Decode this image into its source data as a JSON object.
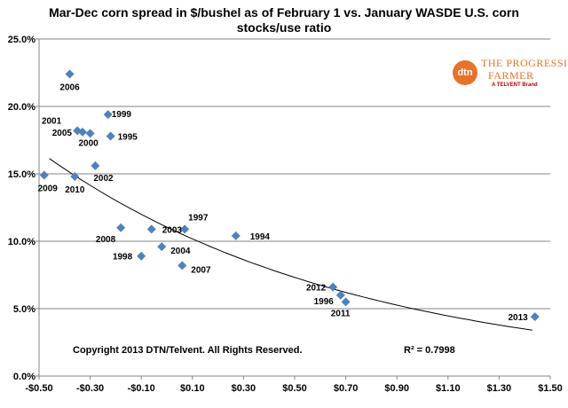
{
  "chart_data": {
    "type": "scatter",
    "title_line1": "Mar-Dec corn spread in $/bushel as of February 1 vs. January WASDE U.S. corn",
    "title_line2": "stocks/use ratio",
    "xlabel": "",
    "ylabel": "",
    "xlim": [
      -0.5,
      1.5
    ],
    "ylim": [
      0.0,
      25.0
    ],
    "x_ticks": [
      "-$0.50",
      "-$0.30",
      "-$0.10",
      "$0.10",
      "$0.30",
      "$0.50",
      "$0.70",
      "$0.90",
      "$1.10",
      "$1.30",
      "$1.50"
    ],
    "x_tick_values": [
      -0.5,
      -0.3,
      -0.1,
      0.1,
      0.3,
      0.5,
      0.7,
      0.9,
      1.1,
      1.3,
      1.5
    ],
    "y_ticks": [
      "0.0%",
      "5.0%",
      "10.0%",
      "15.0%",
      "20.0%",
      "25.0%"
    ],
    "y_tick_values": [
      0,
      5,
      10,
      15,
      20,
      25
    ],
    "grid": "horizontal",
    "marker_color": "#4f81bd",
    "points": [
      {
        "label": "2006",
        "x": -0.38,
        "y": 22.4
      },
      {
        "label": "1999",
        "x": -0.23,
        "y": 19.4
      },
      {
        "label": "2001",
        "x": -0.35,
        "y": 18.2
      },
      {
        "label": "2005",
        "x": -0.33,
        "y": 18.1
      },
      {
        "label": "2000",
        "x": -0.3,
        "y": 18.0
      },
      {
        "label": "1995",
        "x": -0.22,
        "y": 17.8
      },
      {
        "label": "2002",
        "x": -0.28,
        "y": 15.6
      },
      {
        "label": "2009",
        "x": -0.48,
        "y": 14.9
      },
      {
        "label": "2010",
        "x": -0.36,
        "y": 14.8
      },
      {
        "label": "1997",
        "x": 0.07,
        "y": 10.9
      },
      {
        "label": "2008",
        "x": -0.18,
        "y": 11.0
      },
      {
        "label": "2003",
        "x": -0.06,
        "y": 10.9
      },
      {
        "label": "1994",
        "x": 0.27,
        "y": 10.4
      },
      {
        "label": "1998",
        "x": -0.1,
        "y": 8.9
      },
      {
        "label": "2004",
        "x": -0.02,
        "y": 9.6
      },
      {
        "label": "2007",
        "x": 0.06,
        "y": 8.2
      },
      {
        "label": "2012",
        "x": 0.65,
        "y": 6.6
      },
      {
        "label": "1996",
        "x": 0.68,
        "y": 6.0
      },
      {
        "label": "2011",
        "x": 0.7,
        "y": 5.5
      },
      {
        "label": "2013",
        "x": 1.44,
        "y": 4.4
      }
    ],
    "trendline": {
      "type": "exponential",
      "a": 11.05,
      "b": -0.8237,
      "x_start": -0.46,
      "x_end": 1.43
    },
    "r_squared_label": "R² = 0.7998",
    "copyright": "Copyright 2013 DTN/Telvent. All Rights Reserved."
  },
  "logo": {
    "mark": "dtn",
    "line1": "THE PROGRESSIVE",
    "line2": "FARMER",
    "line3": "A TELVENT Brand",
    "color": "#e8722a"
  }
}
